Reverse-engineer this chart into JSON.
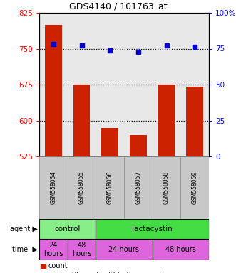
{
  "title": "GDS4140 / 101763_at",
  "samples": [
    "GSM558054",
    "GSM558055",
    "GSM558056",
    "GSM558057",
    "GSM558058",
    "GSM558059"
  ],
  "bar_values": [
    800,
    675,
    585,
    570,
    675,
    670
  ],
  "percentile_values": [
    78,
    77,
    74,
    73,
    77,
    76
  ],
  "bar_color": "#cc2200",
  "percentile_color": "#0000cc",
  "ylim_left": [
    525,
    825
  ],
  "ylim_right": [
    0,
    100
  ],
  "yticks_left": [
    525,
    600,
    675,
    750,
    825
  ],
  "yticks_right": [
    0,
    25,
    50,
    75,
    100
  ],
  "ytick_labels_right": [
    "0",
    "25",
    "50",
    "75",
    "100%"
  ],
  "grid_values": [
    600,
    675,
    750
  ],
  "agent_groups": [
    {
      "label": "control",
      "start": 0,
      "end": 2,
      "color": "#88ee88"
    },
    {
      "label": "lactacystin",
      "start": 2,
      "end": 6,
      "color": "#44dd44"
    }
  ],
  "time_spans": [
    {
      "label": "24\nhours",
      "start": 0,
      "end": 1
    },
    {
      "label": "48\nhours",
      "start": 1,
      "end": 2
    },
    {
      "label": "24 hours",
      "start": 2,
      "end": 4
    },
    {
      "label": "48 hours",
      "start": 4,
      "end": 6
    }
  ],
  "time_color": "#dd66dd",
  "plot_bg_color": "#e8e8e8",
  "label_bg_color": "#c8c8c8"
}
